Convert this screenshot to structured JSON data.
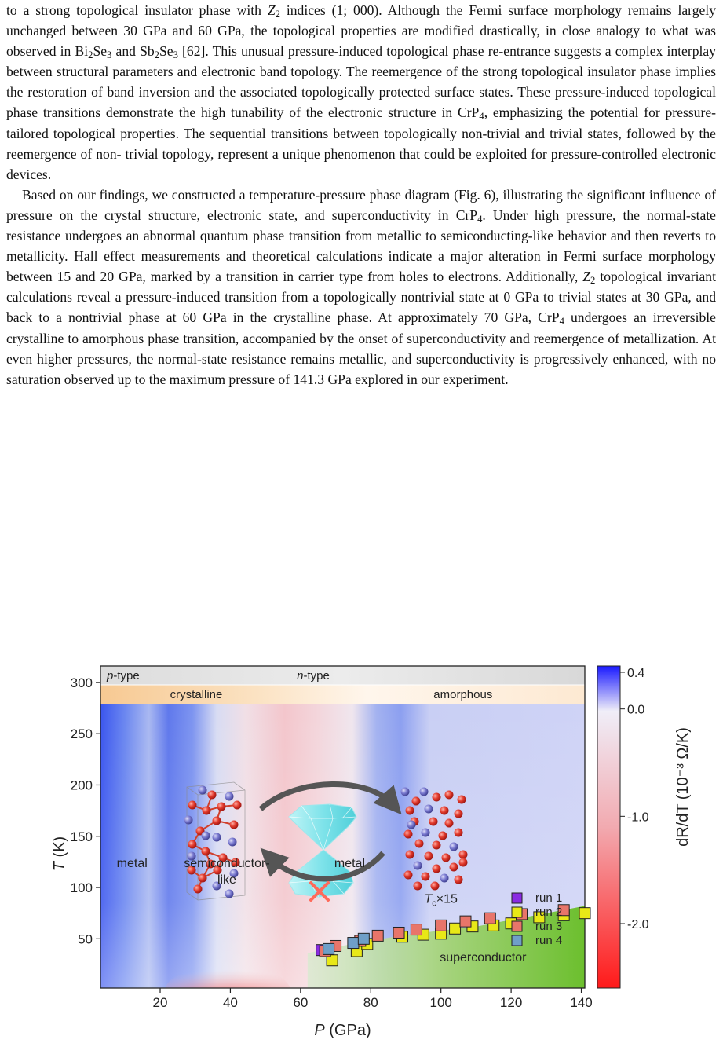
{
  "paragraph1": {
    "lines": [
      [
        "to a strong topological insulator phase with ",
        {
          "i": "Z"
        },
        {
          "sub": "2"
        },
        " indices (1; 000). Although the Fermi surface"
      ],
      [
        "morphology remains largely unchanged between 30 GPa and 60 GPa, the topological properties are"
      ],
      [
        "modified drastically, in close analogy to what was observed in Bi",
        {
          "sub": "2"
        },
        "Se",
        {
          "sub": "3"
        },
        " and Sb",
        {
          "sub": "2"
        },
        "Se",
        {
          "sub": "3"
        },
        " [62]. This unusual"
      ],
      [
        "pressure-induced topological phase re-entrance suggests a complex interplay between structural"
      ],
      [
        "parameters and electronic band topology. The reemergence of the strong topological insulator phase"
      ],
      [
        "implies the restoration of band inversion and the associated topologically protected surface states."
      ],
      [
        "These pressure-induced topological phase transitions demonstrate the high tunability of the electronic"
      ],
      [
        "structure in CrP",
        {
          "sub": "4"
        },
        ", emphasizing the potential for pressure-tailored topological properties. The sequential"
      ],
      [
        "transitions between topologically non-trivial and trivial states, followed by the reemergence of non-"
      ],
      [
        "trivial topology, represent a unique phenomenon that could be exploited for pressure-controlled"
      ],
      [
        "electronic devices."
      ]
    ]
  },
  "paragraph2": {
    "lines": [
      [
        "Based on our findings, we constructed a temperature-pressure phase diagram (Fig. 6), illustrating"
      ],
      [
        "the significant influence of pressure on the crystal structure, electronic state, and superconductivity in"
      ],
      [
        "CrP",
        {
          "sub": "4"
        },
        ". Under high pressure, the normal-state resistance undergoes an abnormal quantum phase"
      ],
      [
        "transition from metallic to semiconducting-like behavior and then reverts to metallicity. Hall effect"
      ],
      [
        "measurements and theoretical calculations indicate a major alteration in Fermi surface morphology"
      ],
      [
        "between 15 and 20 GPa, marked by a transition in carrier type from holes to electrons. Additionally, ",
        {
          "i": "Z"
        },
        {
          "sub": "2"
        }
      ],
      [
        "topological invariant calculations reveal a pressure-induced transition from a topologically nontrivial"
      ],
      [
        "state at 0 GPa to trivial states at 30 GPa, and back to a nontrivial phase at 60 GPa in the crystalline"
      ],
      [
        "phase. At approximately 70 GPa, CrP",
        {
          "sub": "4"
        },
        " undergoes an irreversible crystalline to amorphous phase"
      ],
      [
        "transition, accompanied by the onset of superconductivity and reemergence of metallization. At even"
      ],
      [
        "higher pressures, the normal-state resistance remains metallic, and superconductivity is progressively"
      ],
      [
        "enhanced, with no saturation observed up to the maximum pressure of 141.3 GPa explored in our"
      ],
      [
        "experiment."
      ]
    ]
  },
  "chart_data": {
    "type": "heatmap",
    "xlabel_var": "P",
    "xlabel_unit": "(GPa)",
    "ylabel_var": "T",
    "ylabel_unit": "(K)",
    "xlim": [
      3,
      141
    ],
    "ylim": [
      2,
      316
    ],
    "xticks": [
      20,
      40,
      60,
      80,
      100,
      120,
      140
    ],
    "yticks": [
      50,
      100,
      150,
      200,
      250,
      300
    ],
    "colorbar": {
      "label": "dR/dT (10⁻³ Ω/K)",
      "ticks": [
        "0.4",
        "0.0",
        "-1.0",
        "-2.0"
      ],
      "tick_values": [
        0.4,
        0.0,
        -1.0,
        -2.0
      ],
      "range": [
        -2.6,
        0.4
      ],
      "colors": {
        "max": "#1a1aff",
        "mid": "#f0eef8",
        "min": "#ff1a1a"
      }
    },
    "bands": {
      "carrier": [
        {
          "label": "p-type",
          "from": 3,
          "to": 22
        },
        {
          "label": "n-type",
          "from": 22,
          "to": 141
        }
      ],
      "structure": [
        {
          "label": "crystalline",
          "from": 3,
          "to": 68
        },
        {
          "label": "amorphous",
          "from": 68,
          "to": 141
        }
      ]
    },
    "regions": [
      {
        "label": "metal",
        "P": 12,
        "T": 120
      },
      {
        "label": "semiconductor-",
        "P": 39,
        "T": 120
      },
      {
        "label": "like",
        "P": 39,
        "T": 104
      },
      {
        "label": "metal",
        "P": 74,
        "T": 120
      },
      {
        "label": "superconductor",
        "P": 112,
        "T": 28
      }
    ],
    "tc_annotation": {
      "var": "T",
      "sub": "c",
      "suffix": "×15",
      "P": 100,
      "T": 85
    },
    "series": [
      {
        "name": "run 1",
        "color": "#8a2be2",
        "x": [
          66
        ],
        "y": [
          39
        ]
      },
      {
        "name": "run 2",
        "color": "#e8e817",
        "x": [
          69,
          76,
          79,
          89,
          95,
          100,
          104,
          109,
          115,
          120,
          128,
          135,
          141
        ],
        "y": [
          29,
          38,
          45,
          52,
          54,
          55,
          60,
          62,
          63,
          65,
          71,
          73,
          75
        ]
      },
      {
        "name": "run 3",
        "color": "#e8756a",
        "x": [
          67,
          70,
          77,
          82,
          88,
          93,
          100,
          107,
          114,
          123,
          135
        ],
        "y": [
          38,
          43,
          48,
          53,
          56,
          59,
          63,
          67,
          70,
          74,
          78
        ]
      },
      {
        "name": "run 4",
        "color": "#6f9fc8",
        "x": [
          68,
          75,
          78
        ],
        "y": [
          40,
          46,
          50
        ]
      }
    ]
  }
}
